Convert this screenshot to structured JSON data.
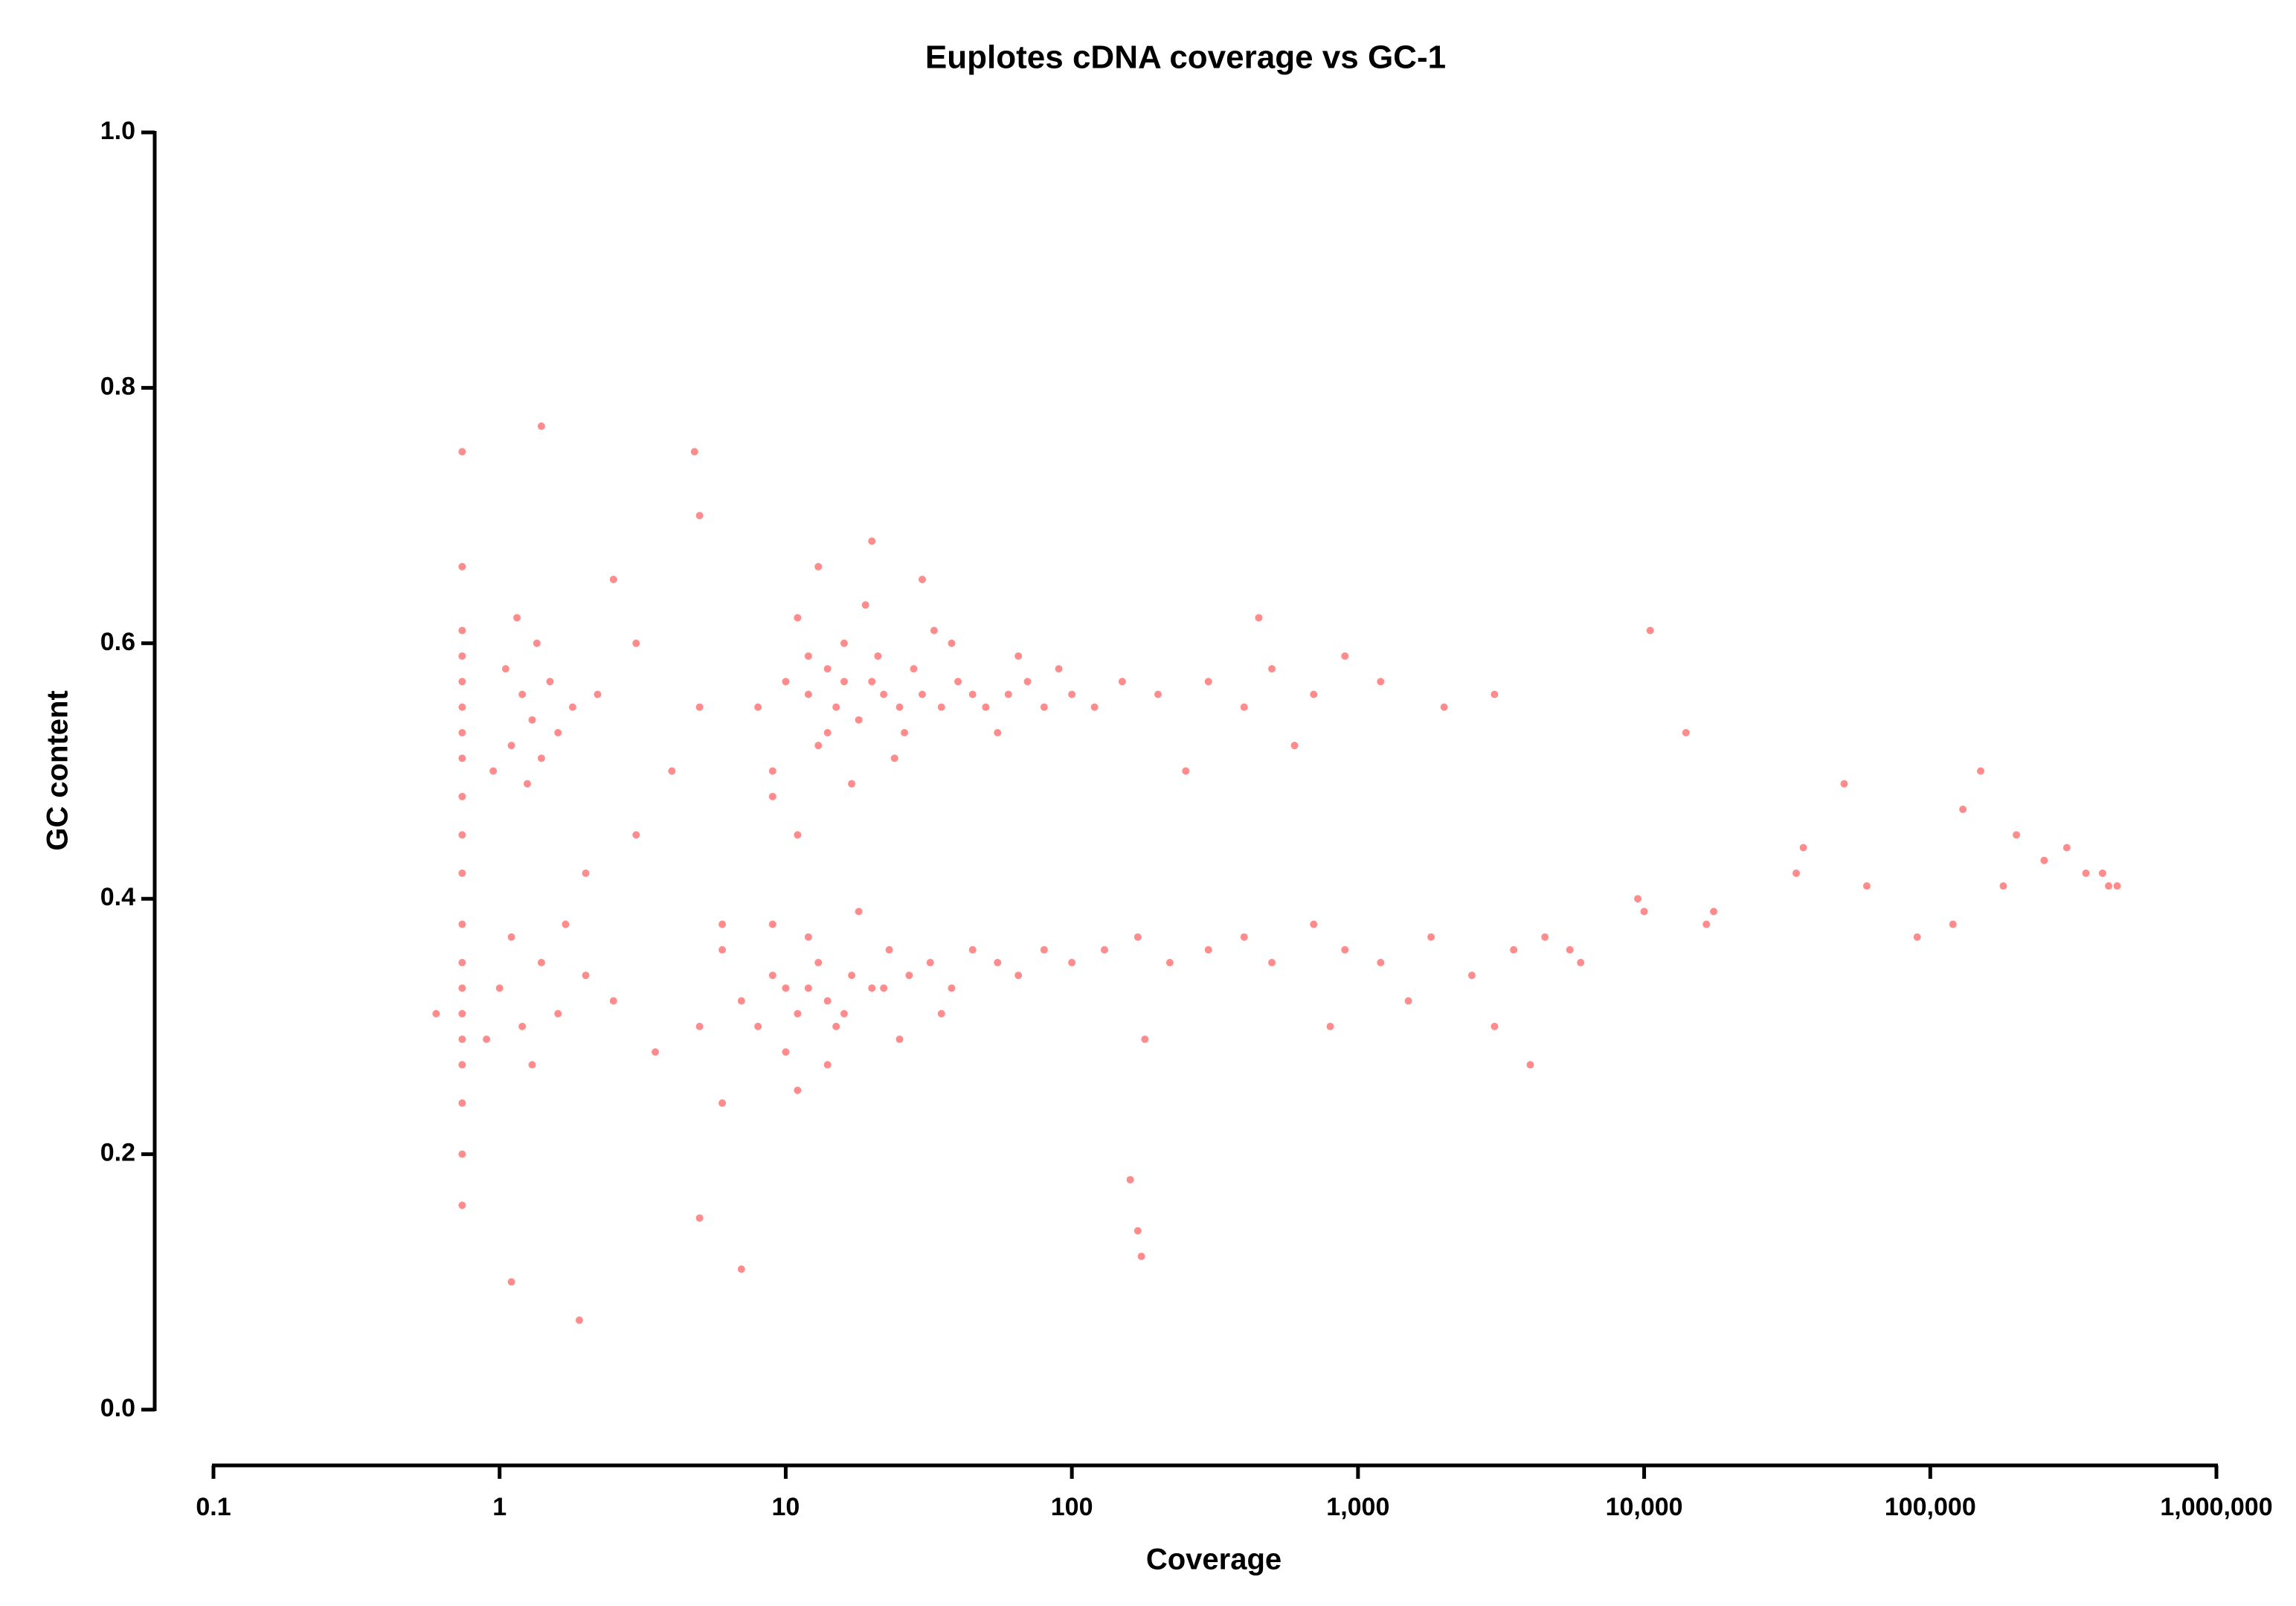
{
  "chart_data": {
    "type": "scatter",
    "title": "Euplotes cDNA coverage vs GC-1",
    "x_label": "Coverage",
    "y_label": "GC content",
    "xscale": "log",
    "color": "#ff0000",
    "xlim": [
      0.1,
      1000000
    ],
    "xticks": [
      0.1,
      1,
      10,
      100,
      {
        "value": 1000,
        "label": "1,000"
      },
      {
        "value": 10000,
        "label": "10,000"
      },
      {
        "value": 100000,
        "label": "100,000"
      },
      {
        "value": 1000000,
        "label": "1,000,000"
      }
    ],
    "ylim": [
      0,
      1
    ],
    "yticks": [
      {
        "value": 0,
        "label": "0.0"
      },
      0.2,
      0.4,
      0.6,
      0.8,
      {
        "value": 1,
        "label": "1.0"
      }
    ],
    "x": [
      0.74,
      0.74,
      0.74,
      0.74,
      0.74,
      0.74,
      0.74,
      0.74,
      0.74,
      0.74,
      0.74,
      0.74,
      0.74,
      0.74,
      0.74,
      0.74,
      0.74,
      0.74,
      0.74,
      0.74,
      1.1,
      1.2,
      1.3,
      1.4,
      1.5,
      1.25,
      1.6,
      1.05,
      1.35,
      1.8,
      0.95,
      2.2,
      1.15,
      1.0,
      1.2,
      1.4,
      1.6,
      1.1,
      1.3,
      2.0,
      0.9,
      1.7,
      2.5,
      3,
      4,
      2.5,
      5,
      3.5,
      6,
      2,
      1.9,
      1.1,
      4.8,
      1.4,
      7,
      5,
      3,
      6,
      5,
      8,
      10,
      12,
      14,
      15,
      16,
      18,
      20,
      22,
      25,
      28,
      30,
      35,
      40,
      45,
      50,
      60,
      70,
      80,
      100,
      120,
      150,
      200,
      9,
      11,
      13,
      17,
      19,
      24,
      33,
      12,
      14,
      16,
      21,
      26,
      38,
      55,
      65,
      90,
      11,
      13,
      20,
      30,
      9,
      300,
      400,
      500,
      700,
      900,
      1200,
      2000,
      3000,
      450,
      250,
      600,
      7,
      8,
      9,
      10,
      11,
      12,
      13,
      14,
      15,
      17,
      20,
      23,
      27,
      32,
      38,
      45,
      55,
      65,
      80,
      100,
      130,
      170,
      220,
      10,
      12,
      9,
      14,
      18,
      25,
      35,
      11,
      6,
      5,
      16,
      22,
      300,
      400,
      500,
      700,
      900,
      1200,
      1800,
      2500,
      3500,
      4500,
      5500,
      6000,
      4000,
      3000,
      1500,
      800,
      160,
      170,
      175,
      180,
      14000,
      10000,
      9500,
      17500,
      16500,
      34000,
      36000,
      10500,
      90000,
      130000,
      150000,
      200000,
      180000,
      250000,
      300000,
      350000,
      420000,
      450000,
      400000,
      120000,
      50000,
      60000,
      0.6
    ],
    "values": [
      0.24,
      0.27,
      0.29,
      0.31,
      0.33,
      0.35,
      0.38,
      0.42,
      0.45,
      0.48,
      0.51,
      0.53,
      0.55,
      0.57,
      0.59,
      0.61,
      0.66,
      0.75,
      0.16,
      0.2,
      0.52,
      0.56,
      0.54,
      0.51,
      0.57,
      0.49,
      0.53,
      0.58,
      0.6,
      0.55,
      0.5,
      0.56,
      0.62,
      0.33,
      0.3,
      0.35,
      0.31,
      0.37,
      0.27,
      0.34,
      0.29,
      0.38,
      0.32,
      0.45,
      0.5,
      0.65,
      0.7,
      0.28,
      0.24,
      0.42,
      0.07,
      0.1,
      0.75,
      0.77,
      0.11,
      0.15,
      0.6,
      0.38,
      0.55,
      0.55,
      0.57,
      0.56,
      0.58,
      0.55,
      0.6,
      0.54,
      0.57,
      0.56,
      0.55,
      0.58,
      0.56,
      0.55,
      0.57,
      0.56,
      0.55,
      0.56,
      0.57,
      0.55,
      0.56,
      0.55,
      0.57,
      0.56,
      0.5,
      0.62,
      0.52,
      0.49,
      0.63,
      0.51,
      0.61,
      0.59,
      0.53,
      0.57,
      0.59,
      0.53,
      0.6,
      0.53,
      0.59,
      0.58,
      0.45,
      0.66,
      0.68,
      0.65,
      0.48,
      0.57,
      0.55,
      0.58,
      0.56,
      0.59,
      0.57,
      0.55,
      0.56,
      0.62,
      0.5,
      0.52,
      0.32,
      0.3,
      0.34,
      0.33,
      0.31,
      0.33,
      0.35,
      0.32,
      0.3,
      0.34,
      0.33,
      0.36,
      0.34,
      0.35,
      0.33,
      0.36,
      0.35,
      0.34,
      0.36,
      0.35,
      0.36,
      0.37,
      0.35,
      0.28,
      0.37,
      0.38,
      0.27,
      0.39,
      0.29,
      0.31,
      0.25,
      0.36,
      0.3,
      0.31,
      0.33,
      0.36,
      0.37,
      0.35,
      0.38,
      0.36,
      0.35,
      0.37,
      0.34,
      0.36,
      0.37,
      0.36,
      0.35,
      0.27,
      0.3,
      0.32,
      0.3,
      0.18,
      0.14,
      0.12,
      0.29,
      0.53,
      0.39,
      0.4,
      0.39,
      0.38,
      0.42,
      0.44,
      0.61,
      0.37,
      0.47,
      0.5,
      0.45,
      0.41,
      0.43,
      0.44,
      0.42,
      0.41,
      0.41,
      0.42,
      0.38,
      0.49,
      0.41,
      0.31
    ]
  }
}
